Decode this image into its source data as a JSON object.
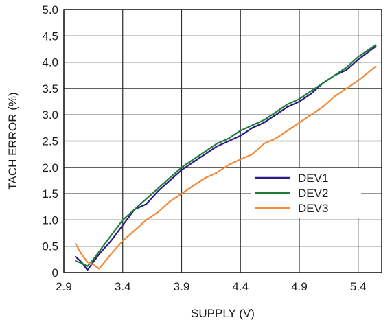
{
  "chart_data": {
    "type": "line",
    "title": "",
    "xlabel": "SUPPLY (V)",
    "ylabel": "TACH ERROR (%)",
    "xlim": [
      2.9,
      5.6
    ],
    "ylim": [
      0,
      5.0
    ],
    "xticks": [
      "2.9",
      "3.4",
      "3.9",
      "4.4",
      "4.9",
      "5.4"
    ],
    "xtick_values": [
      2.9,
      3.4,
      3.9,
      4.4,
      4.9,
      5.4
    ],
    "yticks": [
      "0",
      "0.5",
      "1.0",
      "1.5",
      "2.0",
      "2.5",
      "3.0",
      "3.5",
      "4.0",
      "4.5",
      "5.0"
    ],
    "ytick_values": [
      0,
      0.5,
      1.0,
      1.5,
      2.0,
      2.5,
      3.0,
      3.5,
      4.0,
      4.5,
      5.0
    ],
    "grid": true,
    "legend_position": "center-right",
    "series": [
      {
        "name": "DEV1",
        "color": "#2e1a87",
        "x": [
          3.0,
          3.05,
          3.1,
          3.15,
          3.2,
          3.3,
          3.4,
          3.5,
          3.6,
          3.7,
          3.8,
          3.9,
          4.0,
          4.1,
          4.2,
          4.3,
          4.4,
          4.5,
          4.6,
          4.7,
          4.8,
          4.9,
          5.0,
          5.1,
          5.2,
          5.3,
          5.4,
          5.55
        ],
        "y": [
          0.3,
          0.2,
          0.05,
          0.2,
          0.35,
          0.6,
          0.9,
          1.2,
          1.3,
          1.55,
          1.75,
          1.95,
          2.1,
          2.25,
          2.4,
          2.5,
          2.6,
          2.75,
          2.85,
          3.0,
          3.15,
          3.25,
          3.4,
          3.6,
          3.75,
          3.85,
          4.05,
          4.3
        ]
      },
      {
        "name": "DEV2",
        "color": "#1f7f3a",
        "x": [
          3.0,
          3.05,
          3.1,
          3.15,
          3.2,
          3.3,
          3.4,
          3.5,
          3.6,
          3.7,
          3.8,
          3.9,
          4.0,
          4.1,
          4.2,
          4.3,
          4.4,
          4.5,
          4.6,
          4.7,
          4.8,
          4.9,
          5.0,
          5.1,
          5.2,
          5.3,
          5.4,
          5.55
        ],
        "y": [
          0.22,
          0.18,
          0.12,
          0.25,
          0.4,
          0.7,
          1.0,
          1.2,
          1.4,
          1.6,
          1.8,
          2.0,
          2.15,
          2.3,
          2.45,
          2.55,
          2.7,
          2.8,
          2.9,
          3.05,
          3.2,
          3.3,
          3.45,
          3.6,
          3.75,
          3.9,
          4.1,
          4.33
        ]
      },
      {
        "name": "DEV3",
        "color": "#f28a36",
        "x": [
          3.0,
          3.05,
          3.1,
          3.15,
          3.2,
          3.3,
          3.4,
          3.5,
          3.6,
          3.7,
          3.8,
          3.9,
          4.0,
          4.1,
          4.2,
          4.3,
          4.4,
          4.5,
          4.6,
          4.7,
          4.8,
          4.9,
          5.0,
          5.1,
          5.2,
          5.3,
          5.4,
          5.55
        ],
        "y": [
          0.55,
          0.35,
          0.2,
          0.15,
          0.07,
          0.35,
          0.6,
          0.8,
          1.0,
          1.15,
          1.35,
          1.5,
          1.65,
          1.8,
          1.9,
          2.05,
          2.15,
          2.25,
          2.45,
          2.55,
          2.7,
          2.85,
          3.0,
          3.15,
          3.35,
          3.5,
          3.65,
          3.92
        ]
      }
    ]
  }
}
